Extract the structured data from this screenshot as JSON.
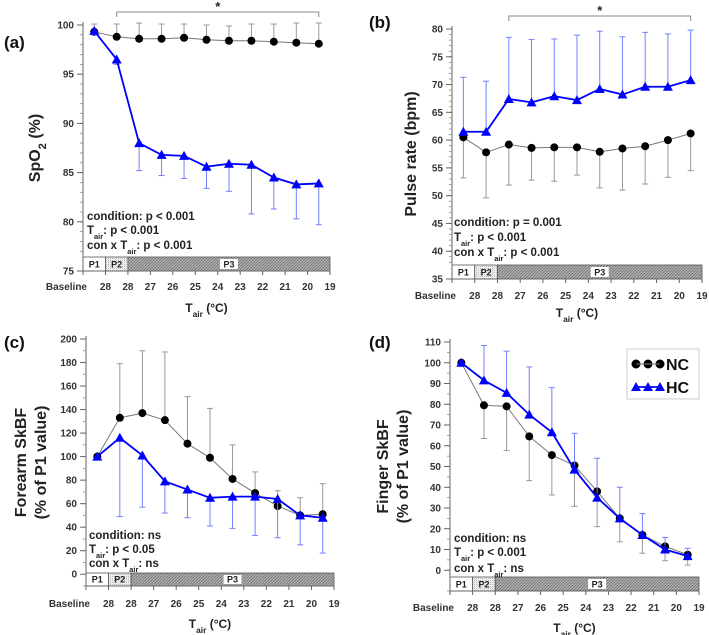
{
  "x_tick_labels": [
    "Baseline",
    "28",
    "28",
    "27",
    "26",
    "25",
    "24",
    "23",
    "22",
    "21",
    "20",
    "19"
  ],
  "x_title": {
    "pre": "T",
    "sub": "air",
    "post": " (°C)"
  },
  "phases": [
    "P1",
    "P2",
    "P3"
  ],
  "colors": {
    "NC": "#000000",
    "NC_line": "#777777",
    "NC_err": "#999999",
    "HC": "#0000ff",
    "HC_err": "#7080ff",
    "phase_p2": "#dddddd",
    "phase_p3": "#a0a0a0"
  },
  "legend": {
    "position": "top-right",
    "items": [
      {
        "label": "NC",
        "marker": "circle"
      },
      {
        "label": "HC",
        "marker": "triangle"
      }
    ]
  },
  "chart_data": [
    {
      "type": "line",
      "panel_label": "(a)",
      "ylabel": {
        "pre": "SpO",
        "sub": "2",
        "post": " (%)"
      },
      "ylim": [
        75,
        100
      ],
      "yticks": [
        75,
        80,
        85,
        90,
        95,
        100
      ],
      "minor_step": 1,
      "categories": [
        "Baseline",
        "28",
        "27.5",
        "26.5",
        "25.5",
        "24.5",
        "23.5",
        "22.5",
        "21.5",
        "20.5",
        "19.5"
      ],
      "significance": {
        "label": "*",
        "from": 1,
        "to": 10
      },
      "series": [
        {
          "name": "NC",
          "values": [
            99.3,
            98.8,
            98.6,
            98.6,
            98.7,
            98.5,
            98.4,
            98.4,
            98.3,
            98.2,
            98.1
          ],
          "err_end": [
            100.1,
            100.1,
            100.2,
            100.1,
            100.1,
            100.0,
            99.9,
            100.1,
            100.1,
            100.2,
            100.2
          ]
        },
        {
          "name": "HC",
          "values": [
            99.4,
            96.5,
            88.0,
            86.8,
            86.7,
            85.6,
            85.9,
            85.8,
            84.5,
            83.8,
            83.9
          ],
          "err_end": [
            99.0,
            96.0,
            85.2,
            84.7,
            84.4,
            83.4,
            83.1,
            80.8,
            81.3,
            80.3,
            79.7
          ]
        }
      ],
      "stats": [
        {
          "pre": "condition: p < 0.001",
          "sub": "",
          "post": ""
        },
        {
          "pre": "T",
          "sub": "air",
          "post": ": p < 0.001"
        },
        {
          "pre": "con x T",
          "sub": "air",
          "post": ": p < 0.001"
        }
      ]
    },
    {
      "type": "line",
      "panel_label": "(b)",
      "ylabel": {
        "pre": "Pulse rate (bpm)",
        "sub": "",
        "post": ""
      },
      "ylim": [
        35,
        80
      ],
      "yticks": [
        35,
        40,
        45,
        50,
        55,
        60,
        65,
        70,
        75,
        80
      ],
      "minor_step": 1,
      "categories": [
        "Baseline",
        "28",
        "27.5",
        "26.5",
        "25.5",
        "24.5",
        "23.5",
        "22.5",
        "21.5",
        "20.5",
        "19.5"
      ],
      "significance": {
        "label": "*",
        "from": 2,
        "to": 10
      },
      "series": [
        {
          "name": "NC",
          "values": [
            60.5,
            57.8,
            59.2,
            58.6,
            58.7,
            58.7,
            57.9,
            58.5,
            58.9,
            60.0,
            61.2
          ],
          "err_end": [
            53.2,
            49.6,
            51.9,
            52.8,
            52.6,
            53.7,
            51.4,
            51.0,
            52.1,
            53.3,
            54.5
          ]
        },
        {
          "name": "HC",
          "values": [
            61.5,
            61.5,
            67.4,
            66.8,
            67.9,
            67.2,
            69.2,
            68.2,
            69.6,
            69.6,
            70.8
          ],
          "err_end": [
            71.3,
            70.6,
            78.5,
            78.1,
            78.2,
            78.9,
            79.6,
            78.6,
            79.4,
            79.1,
            79.8
          ]
        }
      ],
      "stats": [
        {
          "pre": "condition: p = 0.001",
          "sub": "",
          "post": ""
        },
        {
          "pre": "T",
          "sub": "air",
          "post": ": p < 0.001"
        },
        {
          "pre": "con x T",
          "sub": "air",
          "post": ": p < 0.001"
        }
      ]
    },
    {
      "type": "line",
      "panel_label": "(c)",
      "ylabel": {
        "pre": "Forearm SkBF",
        "line2": "(% of P1 value)",
        "sub": "",
        "post": ""
      },
      "ylim": [
        -10,
        200
      ],
      "yticks": [
        0,
        20,
        40,
        60,
        80,
        100,
        120,
        140,
        160,
        180,
        200
      ],
      "minor_step": 10,
      "categories": [
        "Baseline",
        "28",
        "27.5",
        "26.5",
        "25.5",
        "24.5",
        "23.5",
        "22.5",
        "21.5",
        "20.5",
        "19.5"
      ],
      "series": [
        {
          "name": "NC",
          "values": [
            100,
            133,
            137,
            131,
            111,
            99,
            81,
            69,
            58,
            50,
            51
          ],
          "err_end": [
            100,
            179,
            190,
            189,
            151,
            141,
            110,
            87,
            71,
            65,
            77
          ]
        },
        {
          "name": "HC",
          "values": [
            100,
            116,
            101,
            79,
            72,
            65,
            66,
            66,
            64,
            50,
            48
          ],
          "err_end": [
            100,
            49,
            57,
            52,
            48,
            41,
            39,
            33,
            31,
            25,
            18
          ]
        }
      ],
      "stats": [
        {
          "pre": "condition: ns",
          "sub": "",
          "post": ""
        },
        {
          "pre": "T",
          "sub": "air",
          "post": ": p < 0.05"
        },
        {
          "pre": "con x T",
          "sub": "air",
          "post": ": ns"
        }
      ]
    },
    {
      "type": "line",
      "panel_label": "(d)",
      "ylabel": {
        "pre": "Finger SkBF",
        "line2": "(% of P1 value)",
        "sub": "",
        "post": ""
      },
      "ylim": [
        -10,
        110
      ],
      "yticks": [
        0,
        10,
        20,
        30,
        40,
        50,
        60,
        70,
        80,
        90,
        100,
        110
      ],
      "minor_step": 5,
      "categories": [
        "Baseline",
        "28",
        "27.5",
        "26.5",
        "25.5",
        "24.5",
        "23.5",
        "22.5",
        "21.5",
        "20.5",
        "19.5"
      ],
      "series": [
        {
          "name": "NC",
          "values": [
            100,
            79.5,
            79,
            64.5,
            55.5,
            50.5,
            38,
            25,
            17,
            11.5,
            7.5
          ],
          "err_end": [
            100,
            63.5,
            57.7,
            43.2,
            36.3,
            30.8,
            21,
            13.7,
            8.2,
            4.6,
            2.5
          ]
        },
        {
          "name": "HC",
          "values": [
            100,
            91.5,
            85.5,
            75,
            66.5,
            48.5,
            35,
            25,
            17,
            10,
            6.8
          ],
          "err_end": [
            100,
            108.3,
            105.6,
            98,
            88,
            66,
            54,
            40,
            27.3,
            15.8,
            10.6
          ]
        }
      ],
      "stats": [
        {
          "pre": "condition: ns",
          "sub": "",
          "post": ""
        },
        {
          "pre": "T",
          "sub": "air",
          "post": ": p < 0.001"
        },
        {
          "pre": "con x T",
          "sub": "air",
          "post": ": ns"
        }
      ],
      "show_legend": true
    }
  ]
}
